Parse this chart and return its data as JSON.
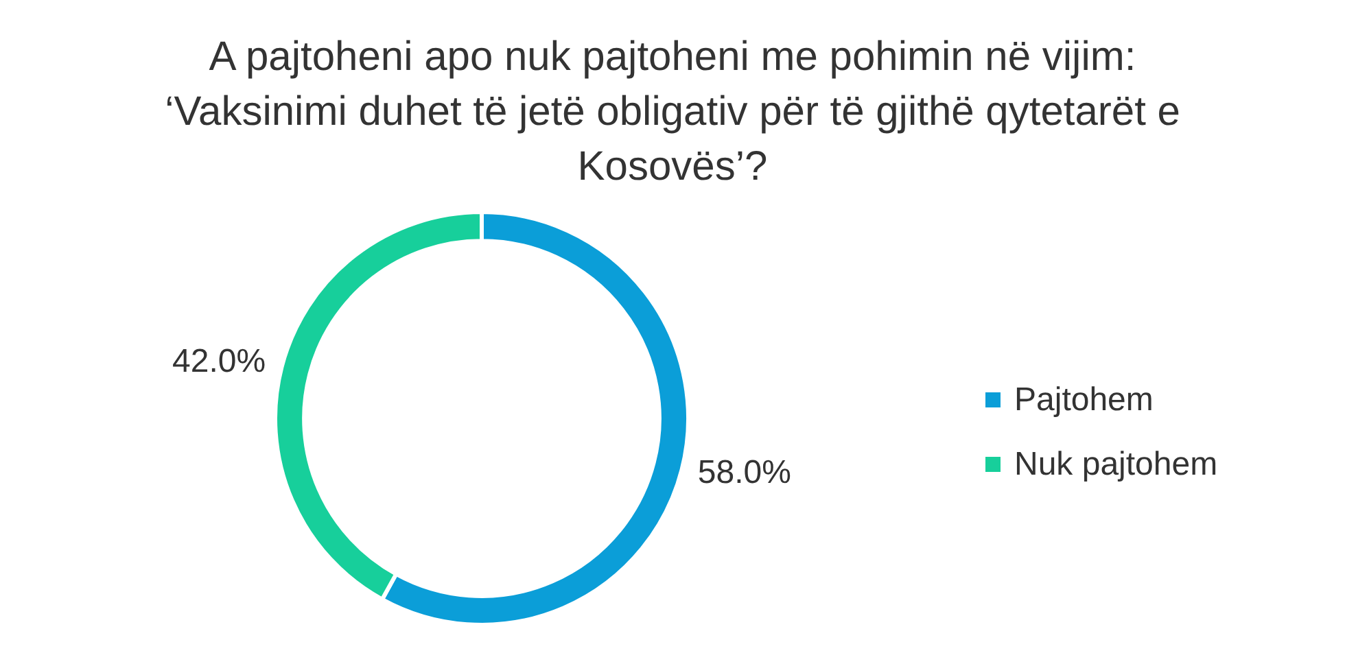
{
  "chart_data": {
    "type": "donut",
    "title": "A pajtoheni apo nuk pajtoheni me pohimin në vijim: ‘Vaksinimi duhet të jetë obligativ për të gjithë qytetarët e Kosovës’?",
    "categories": [
      "Pajtohem",
      "Nuk pajtohem"
    ],
    "values": [
      58.0,
      42.0
    ],
    "colors": [
      "#0b9ed8",
      "#17cf9b"
    ],
    "value_labels": [
      "58.0%",
      "42.0%"
    ],
    "legend": "right"
  }
}
